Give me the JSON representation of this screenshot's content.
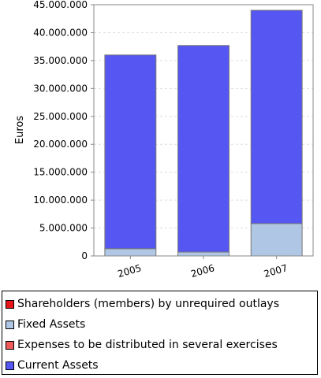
{
  "chart_data": {
    "type": "bar",
    "stacked": true,
    "categories": [
      "2005",
      "2006",
      "2007"
    ],
    "series": [
      {
        "name": "Shareholders (members) by unrequired outlays",
        "color": "#e8161b",
        "values": [
          0,
          0,
          0
        ]
      },
      {
        "name": "Fixed Assets",
        "color": "#afc7e4",
        "values": [
          1300000,
          700000,
          5800000
        ]
      },
      {
        "name": "Expenses to be distributed in several exercises",
        "color": "#ee5a5a",
        "values": [
          0,
          0,
          0
        ]
      },
      {
        "name": "Current Assets",
        "color": "#5656f2",
        "values": [
          34700000,
          37000000,
          38200000
        ]
      }
    ],
    "xlabel": "",
    "ylabel": "Euros",
    "ylim": [
      0,
      45000000
    ],
    "yticks": [
      0,
      5000000,
      10000000,
      15000000,
      20000000,
      25000000,
      30000000,
      35000000,
      40000000,
      45000000
    ],
    "ytick_labels": [
      "0",
      "5.000.000",
      "10.000.000",
      "15.000.000",
      "20.000.000",
      "25.000.000",
      "30.000.000",
      "35.000.000",
      "40.000.000",
      "45.000.000"
    ],
    "grid": true,
    "legend_position": "bottom"
  }
}
